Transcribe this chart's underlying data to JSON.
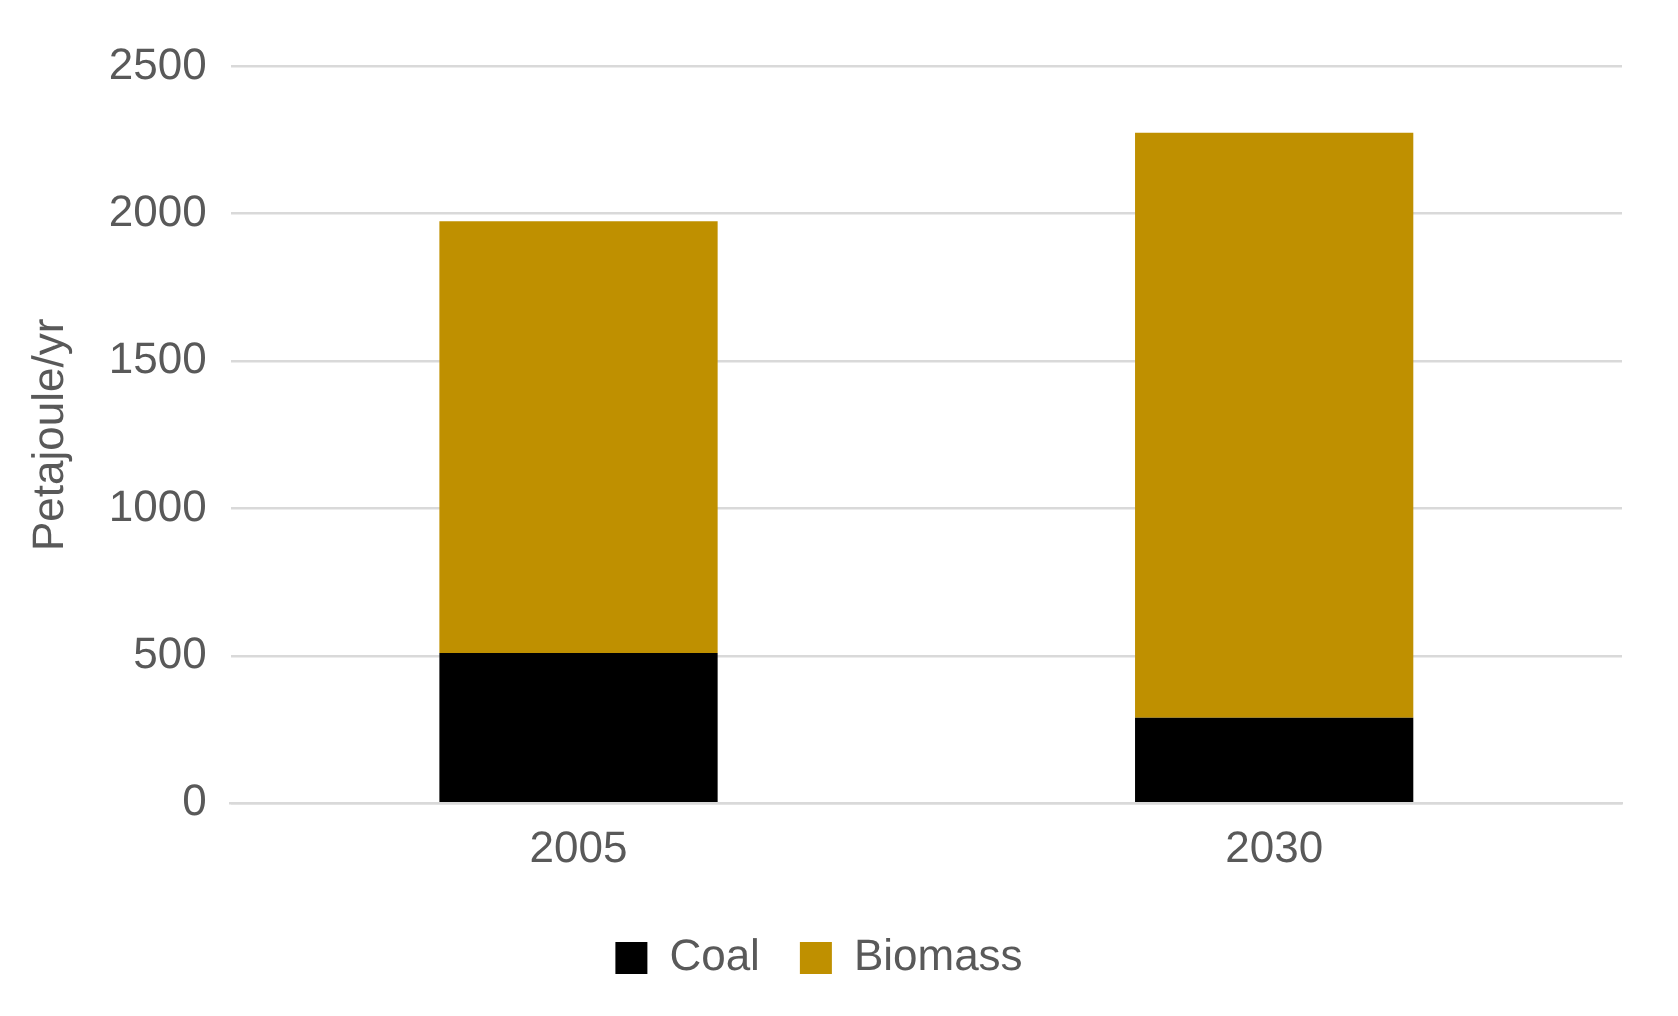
{
  "chart_data": {
    "type": "bar",
    "stacked": true,
    "ylabel": "Petajoule/yr",
    "categories": [
      "2005",
      "2030"
    ],
    "series": [
      {
        "name": "Coal",
        "color": "#000000",
        "values": [
          510,
          290
        ]
      },
      {
        "name": "Biomass",
        "color": "#bf9000",
        "values": [
          1465,
          1985
        ]
      }
    ],
    "ylim": [
      0,
      2500
    ],
    "yticks": [
      0,
      500,
      1000,
      1500,
      2000,
      2500
    ],
    "grid": "y",
    "legend": "bottom"
  }
}
